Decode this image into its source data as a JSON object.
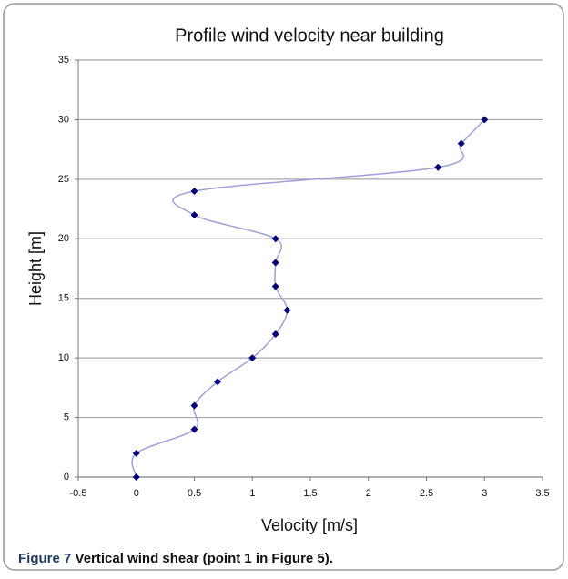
{
  "chart_data": {
    "type": "line",
    "title": "Profile wind velocity near  building",
    "x_label": "Velocity [m/s]",
    "y_label": "Height [m]",
    "x": [
      0,
      0,
      0.5,
      0.5,
      0.7,
      1.0,
      1.2,
      1.3,
      1.2,
      1.2,
      1.2,
      0.5,
      0.5,
      2.6,
      2.8,
      3.0
    ],
    "values": [
      0,
      2,
      4,
      6,
      8,
      10,
      12,
      14,
      16,
      18,
      20,
      22,
      24,
      26,
      28,
      30
    ],
    "color": "#a0a0dc",
    "marker_color": "#000080",
    "xlim": [
      -0.5,
      3.5
    ],
    "xticks": [
      -0.5,
      0,
      0.5,
      1,
      1.5,
      2,
      2.5,
      3,
      3.5
    ],
    "ylim": [
      0,
      35
    ],
    "yticks": [
      0,
      5,
      10,
      15,
      20,
      25,
      30,
      35
    ],
    "grid": true
  },
  "caption": {
    "label": "Figure 7",
    "text": "Vertical wind shear (point 1 in Figure 5)."
  }
}
